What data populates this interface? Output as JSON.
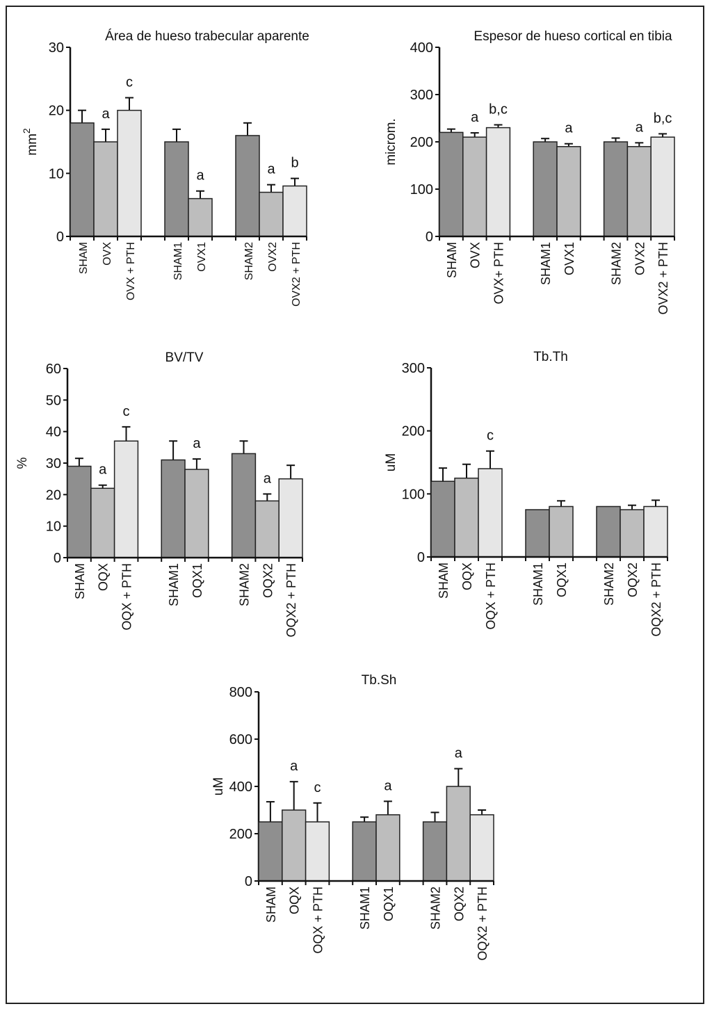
{
  "colors": {
    "sham": "#8f8f8f",
    "ovx": "#bdbdbd",
    "pth": "#e6e6e6",
    "axis": "#111111"
  },
  "chart_data": [
    {
      "id": "area",
      "type": "bar",
      "title": "Área de hueso trabecular aparente",
      "ylabel": "mm",
      "ylabel_sup": "2",
      "ylim": [
        0,
        30
      ],
      "yticks": [
        "0",
        "10",
        "20",
        "30"
      ],
      "groups": [
        {
          "bars": [
            {
              "category": "SHAM",
              "value": 18,
              "error": 2,
              "kind": "sham",
              "sig": ""
            },
            {
              "category": "OVX",
              "value": 15,
              "error": 2,
              "kind": "ovx",
              "sig": "a"
            },
            {
              "category": "OVX + PTH",
              "value": 20,
              "error": 2,
              "kind": "pth",
              "sig": "c"
            }
          ]
        },
        {
          "bars": [
            {
              "category": "SHAM1",
              "value": 15,
              "error": 2,
              "kind": "sham",
              "sig": ""
            },
            {
              "category": "OVX1",
              "value": 6,
              "error": 1.2,
              "kind": "ovx",
              "sig": "a"
            }
          ]
        },
        {
          "bars": [
            {
              "category": "SHAM2",
              "value": 16,
              "error": 2,
              "kind": "sham",
              "sig": ""
            },
            {
              "category": "OVX2",
              "value": 7,
              "error": 1.2,
              "kind": "ovx",
              "sig": "a"
            },
            {
              "category": "OVX2 + PTH",
              "value": 8,
              "error": 1.2,
              "kind": "pth",
              "sig": "b"
            }
          ]
        }
      ]
    },
    {
      "id": "cortical",
      "type": "bar",
      "title": "Espesor de hueso cortical en tibia",
      "ylabel": "microm.",
      "ylim": [
        0,
        400
      ],
      "yticks": [
        "0",
        "100",
        "200",
        "300",
        "400"
      ],
      "groups": [
        {
          "bars": [
            {
              "category": "SHAM",
              "value": 220,
              "error": 7,
              "kind": "sham",
              "sig": ""
            },
            {
              "category": "OVX",
              "value": 210,
              "error": 9,
              "kind": "ovx",
              "sig": "a"
            },
            {
              "category": "OVX+ PTH",
              "value": 230,
              "error": 6,
              "kind": "pth",
              "sig": "b,c"
            }
          ]
        },
        {
          "bars": [
            {
              "category": "SHAM1",
              "value": 200,
              "error": 7,
              "kind": "sham",
              "sig": ""
            },
            {
              "category": "OVX1",
              "value": 190,
              "error": 6,
              "kind": "ovx",
              "sig": "a"
            }
          ]
        },
        {
          "bars": [
            {
              "category": "SHAM2",
              "value": 200,
              "error": 8,
              "kind": "sham",
              "sig": ""
            },
            {
              "category": "OVX2",
              "value": 190,
              "error": 8,
              "kind": "ovx",
              "sig": "a"
            },
            {
              "category": "OVX2 + PTH",
              "value": 210,
              "error": 7,
              "kind": "pth",
              "sig": "b,c"
            }
          ]
        }
      ]
    },
    {
      "id": "bvtv",
      "type": "bar",
      "title": "BV/TV",
      "ylabel": "%",
      "ylim": [
        0,
        60
      ],
      "yticks": [
        "0",
        "10",
        "20",
        "30",
        "40",
        "50",
        "60"
      ],
      "groups": [
        {
          "bars": [
            {
              "category": "SHAM",
              "value": 29,
              "error": 2.5,
              "kind": "sham",
              "sig": ""
            },
            {
              "category": "OQX",
              "value": 22,
              "error": 1,
              "kind": "ovx",
              "sig": "a"
            },
            {
              "category": "OQX + PTH",
              "value": 37,
              "error": 4.5,
              "kind": "pth",
              "sig": "c"
            }
          ]
        },
        {
          "bars": [
            {
              "category": "SHAM1",
              "value": 31,
              "error": 6,
              "kind": "sham",
              "sig": ""
            },
            {
              "category": "OQX1",
              "value": 28,
              "error": 3.3,
              "kind": "ovx",
              "sig": "a"
            }
          ]
        },
        {
          "bars": [
            {
              "category": "SHAM2",
              "value": 33,
              "error": 4,
              "kind": "sham",
              "sig": ""
            },
            {
              "category": "OQX2",
              "value": 18,
              "error": 2.2,
              "kind": "ovx",
              "sig": "a"
            },
            {
              "category": "OQX2 + PTH",
              "value": 25,
              "error": 4.3,
              "kind": "pth",
              "sig": ""
            }
          ]
        }
      ]
    },
    {
      "id": "tbth",
      "type": "bar",
      "title": "Tb.Th",
      "ylabel": "uM",
      "ylim": [
        0,
        300
      ],
      "yticks": [
        "0",
        "100",
        "200",
        "300"
      ],
      "groups": [
        {
          "bars": [
            {
              "category": "SHAM",
              "value": 120,
              "error": 21,
              "kind": "sham",
              "sig": ""
            },
            {
              "category": "OQX",
              "value": 125,
              "error": 22,
              "kind": "ovx",
              "sig": ""
            },
            {
              "category": "OQX + PTH",
              "value": 140,
              "error": 28,
              "kind": "pth",
              "sig": "c"
            }
          ]
        },
        {
          "bars": [
            {
              "category": "SHAM1",
              "value": 75,
              "error": 0,
              "kind": "sham",
              "sig": ""
            },
            {
              "category": "OQX1",
              "value": 80,
              "error": 9,
              "kind": "ovx",
              "sig": ""
            }
          ]
        },
        {
          "bars": [
            {
              "category": "SHAM2",
              "value": 80,
              "error": 0,
              "kind": "sham",
              "sig": ""
            },
            {
              "category": "OQX2",
              "value": 75,
              "error": 7,
              "kind": "ovx",
              "sig": ""
            },
            {
              "category": "OQX2 + PTH",
              "value": 80,
              "error": 10,
              "kind": "pth",
              "sig": ""
            }
          ]
        }
      ]
    },
    {
      "id": "tbsh",
      "type": "bar",
      "title": "Tb.Sh",
      "ylabel": "uM",
      "ylim": [
        0,
        800
      ],
      "yticks": [
        "0",
        "200",
        "400",
        "600",
        "800"
      ],
      "groups": [
        {
          "bars": [
            {
              "category": "SHAM",
              "value": 250,
              "error": 85,
              "kind": "sham",
              "sig": ""
            },
            {
              "category": "OQX",
              "value": 300,
              "error": 120,
              "kind": "ovx",
              "sig": "a"
            },
            {
              "category": "OQX + PTH",
              "value": 250,
              "error": 80,
              "kind": "pth",
              "sig": "c"
            }
          ]
        },
        {
          "bars": [
            {
              "category": "SHAM1",
              "value": 250,
              "error": 20,
              "kind": "sham",
              "sig": ""
            },
            {
              "category": "OQX1",
              "value": 280,
              "error": 57,
              "kind": "ovx",
              "sig": "a"
            }
          ]
        },
        {
          "bars": [
            {
              "category": "SHAM2",
              "value": 250,
              "error": 40,
              "kind": "sham",
              "sig": ""
            },
            {
              "category": "OQX2",
              "value": 400,
              "error": 75,
              "kind": "ovx",
              "sig": "a"
            },
            {
              "category": "OQX2 + PTH",
              "value": 280,
              "error": 20,
              "kind": "pth",
              "sig": ""
            }
          ]
        }
      ]
    }
  ]
}
